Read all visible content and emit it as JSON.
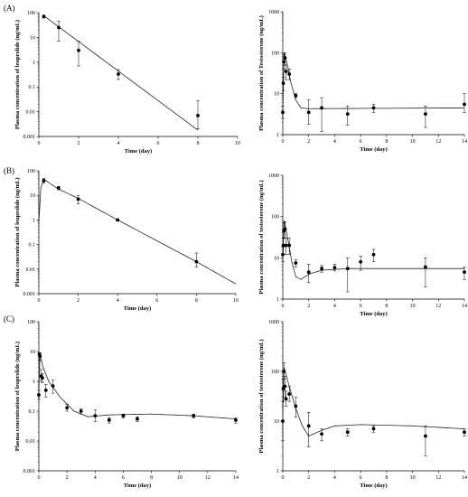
{
  "panels": [
    {
      "label": "(A)"
    },
    {
      "label": "(B)"
    },
    {
      "label": "(C)"
    }
  ],
  "chart_data": [
    {
      "id": "A-leuprolide",
      "type": "scatter",
      "panel": "(A)",
      "title": "",
      "xlabel": "Time (day)",
      "ylabel": "Plasma concentration of leuprolide (ng/mL)",
      "xlim": [
        0,
        10
      ],
      "ylim": [
        0.001,
        100
      ],
      "yscale": "log",
      "xticks": [
        0,
        2,
        4,
        6,
        8,
        10
      ],
      "yticks": [
        0.001,
        0.01,
        0.1,
        1,
        10,
        100
      ],
      "ytick_labels": [
        "0.001",
        "0.01",
        "0.1",
        "1",
        "10",
        "100"
      ],
      "points": [
        {
          "x": 0.25,
          "y": 70,
          "lo": 60,
          "hi": 80
        },
        {
          "x": 1,
          "y": 25,
          "lo": 7,
          "hi": 45
        },
        {
          "x": 2,
          "y": 3,
          "lo": 0.7,
          "hi": 7
        },
        {
          "x": 4,
          "y": 0.33,
          "lo": 0.2,
          "hi": 0.5
        },
        {
          "x": 8,
          "y": 0.007,
          "lo": 0.002,
          "hi": 0.028
        }
      ],
      "fit": [
        [
          0.25,
          75
        ],
        [
          8,
          0.0018
        ]
      ]
    },
    {
      "id": "A-testosterone",
      "type": "scatter",
      "panel": "(A)",
      "title": "",
      "xlabel": "Time (day)",
      "ylabel": "Plasma concentration of Testosterone (ng/mL)",
      "xlim": [
        0,
        14
      ],
      "ylim": [
        1,
        1000
      ],
      "yscale": "log",
      "xticks": [
        0,
        2,
        4,
        6,
        8,
        10,
        12,
        14
      ],
      "yticks": [
        1,
        10,
        100,
        1000
      ],
      "ytick_labels": [
        "1",
        "10",
        "100",
        "1000"
      ],
      "points": [
        {
          "x": 0,
          "y": 3.5,
          "lo": 2.5,
          "hi": 5
        },
        {
          "x": 0.04,
          "y": 18,
          "lo": 12,
          "hi": 25
        },
        {
          "x": 0.08,
          "y": 60,
          "lo": 40,
          "hi": 90
        },
        {
          "x": 0.17,
          "y": 75,
          "lo": 50,
          "hi": 100
        },
        {
          "x": 0.25,
          "y": 35,
          "lo": 22,
          "hi": 50
        },
        {
          "x": 0.5,
          "y": 30,
          "lo": 22,
          "hi": 40
        },
        {
          "x": 1,
          "y": 9,
          "lo": 8,
          "hi": 10
        },
        {
          "x": 2,
          "y": 3.5,
          "lo": 1.8,
          "hi": 7
        },
        {
          "x": 3,
          "y": 4.5,
          "lo": 1.2,
          "hi": 8
        },
        {
          "x": 5,
          "y": 3.2,
          "lo": 1.7,
          "hi": 5
        },
        {
          "x": 7,
          "y": 4.5,
          "lo": 3.5,
          "hi": 5.5
        },
        {
          "x": 11,
          "y": 3.2,
          "lo": 1.5,
          "hi": 5
        },
        {
          "x": 14,
          "y": 5.5,
          "lo": 3.5,
          "hi": 10
        }
      ],
      "fit": [
        [
          0,
          3.5
        ],
        [
          0.1,
          100
        ],
        [
          0.3,
          60
        ],
        [
          0.6,
          20
        ],
        [
          1,
          7
        ],
        [
          1.4,
          4.5
        ],
        [
          2,
          4.3
        ],
        [
          14,
          4.5
        ]
      ]
    },
    {
      "id": "B-leuprolide",
      "type": "scatter",
      "panel": "(B)",
      "title": "",
      "xlabel": "Time (day)",
      "ylabel": "Plasma concentration of leuprolide (ng/mL)",
      "xlim": [
        0,
        10
      ],
      "ylim": [
        0.001,
        100
      ],
      "yscale": "log",
      "xticks": [
        0,
        2,
        4,
        6,
        8,
        10
      ],
      "yticks": [
        0.001,
        0.01,
        0.1,
        1,
        10,
        100
      ],
      "ytick_labels": [
        "0.001",
        "0.01",
        "0.1",
        "1",
        "10",
        "100"
      ],
      "points": [
        {
          "x": 0.25,
          "y": 40,
          "lo": 32,
          "hi": 48
        },
        {
          "x": 1,
          "y": 20,
          "lo": 17,
          "hi": 23
        },
        {
          "x": 2,
          "y": 7,
          "lo": 4.5,
          "hi": 10
        },
        {
          "x": 4,
          "y": 1,
          "lo": 0.9,
          "hi": 1.1
        },
        {
          "x": 8,
          "y": 0.02,
          "lo": 0.012,
          "hi": 0.045
        }
      ],
      "fit": [
        [
          0,
          0.8
        ],
        [
          0.1,
          20
        ],
        [
          0.25,
          45
        ],
        [
          1,
          18
        ],
        [
          2,
          7.5
        ],
        [
          4,
          1
        ],
        [
          8,
          0.02
        ],
        [
          10,
          0.0025
        ]
      ]
    },
    {
      "id": "B-testosterone",
      "type": "scatter",
      "panel": "(B)",
      "title": "",
      "xlabel": "Time (day)",
      "ylabel": "Plasma concentration of testosterone (ng/mL)",
      "xlim": [
        0,
        14
      ],
      "ylim": [
        1,
        1000
      ],
      "yscale": "log",
      "xticks": [
        0,
        2,
        4,
        6,
        8,
        10,
        12,
        14
      ],
      "yticks": [
        1,
        10,
        100,
        1000
      ],
      "ytick_labels": [
        "1",
        "10",
        "100",
        "1000"
      ],
      "points": [
        {
          "x": 0,
          "y": 12,
          "lo": 8,
          "hi": 18
        },
        {
          "x": 0.04,
          "y": 20,
          "lo": 12,
          "hi": 30
        },
        {
          "x": 0.08,
          "y": 45,
          "lo": 30,
          "hi": 70
        },
        {
          "x": 0.17,
          "y": 50,
          "lo": 30,
          "hi": 75
        },
        {
          "x": 0.25,
          "y": 20,
          "lo": 12,
          "hi": 30
        },
        {
          "x": 0.5,
          "y": 20,
          "lo": 12,
          "hi": 30
        },
        {
          "x": 1,
          "y": 7.5,
          "lo": 6,
          "hi": 9
        },
        {
          "x": 2,
          "y": 4.5,
          "lo": 2.5,
          "hi": 7
        },
        {
          "x": 3,
          "y": 5.5,
          "lo": 4.5,
          "hi": 6.5
        },
        {
          "x": 4,
          "y": 5.8,
          "lo": 4.8,
          "hi": 7
        },
        {
          "x": 5,
          "y": 5.5,
          "lo": 1.5,
          "hi": 10
        },
        {
          "x": 6,
          "y": 8,
          "lo": 5,
          "hi": 11
        },
        {
          "x": 7,
          "y": 12,
          "lo": 8,
          "hi": 16
        },
        {
          "x": 11,
          "y": 6,
          "lo": 2,
          "hi": 10
        },
        {
          "x": 14,
          "y": 4.5,
          "lo": 3,
          "hi": 6
        }
      ],
      "fit": [
        [
          0,
          10
        ],
        [
          0.1,
          80
        ],
        [
          0.3,
          40
        ],
        [
          0.7,
          8
        ],
        [
          1,
          3.5
        ],
        [
          1.4,
          3
        ],
        [
          2,
          4
        ],
        [
          3,
          5
        ],
        [
          5,
          5.5
        ],
        [
          14,
          5.5
        ]
      ]
    },
    {
      "id": "C-leuprolide",
      "type": "scatter",
      "panel": "(C)",
      "title": "",
      "xlabel": "Time (day)",
      "ylabel": "Plasma concentration of leuprolide (ng/mL)",
      "xlim": [
        0,
        14
      ],
      "ylim": [
        0.001,
        100
      ],
      "yscale": "log",
      "xticks": [
        0,
        2,
        4,
        6,
        8,
        10,
        12,
        14
      ],
      "yticks": [
        0.001,
        0.01,
        0.1,
        1,
        10,
        100
      ],
      "ytick_labels": [
        "0.001",
        "0.01",
        "0.1",
        "1",
        "10",
        "100"
      ],
      "points": [
        {
          "x": 0,
          "y": 0.35,
          "lo": 0.25,
          "hi": 0.5
        },
        {
          "x": 0.04,
          "y": 8,
          "lo": 5,
          "hi": 9
        },
        {
          "x": 0.08,
          "y": 7,
          "lo": 5,
          "hi": 9
        },
        {
          "x": 0.17,
          "y": 1.5,
          "lo": 1,
          "hi": 2.5
        },
        {
          "x": 0.25,
          "y": 1.3,
          "lo": 0.9,
          "hi": 1.8
        },
        {
          "x": 0.5,
          "y": 0.5,
          "lo": 0.3,
          "hi": 0.8
        },
        {
          "x": 1,
          "y": 0.7,
          "lo": 0.4,
          "hi": 1.1
        },
        {
          "x": 2,
          "y": 0.13,
          "lo": 0.1,
          "hi": 0.17
        },
        {
          "x": 3,
          "y": 0.1,
          "lo": 0.08,
          "hi": 0.12
        },
        {
          "x": 4,
          "y": 0.07,
          "lo": 0.045,
          "hi": 0.11
        },
        {
          "x": 5,
          "y": 0.05,
          "lo": 0.04,
          "hi": 0.06
        },
        {
          "x": 6,
          "y": 0.07,
          "lo": 0.06,
          "hi": 0.08
        },
        {
          "x": 7,
          "y": 0.055,
          "lo": 0.045,
          "hi": 0.065
        },
        {
          "x": 11,
          "y": 0.07,
          "lo": 0.06,
          "hi": 0.08
        },
        {
          "x": 14,
          "y": 0.05,
          "lo": 0.04,
          "hi": 0.06
        }
      ],
      "fit": [
        [
          0,
          0.5
        ],
        [
          0.08,
          8
        ],
        [
          0.3,
          3
        ],
        [
          0.7,
          1
        ],
        [
          1.5,
          0.3
        ],
        [
          2.5,
          0.1
        ],
        [
          3.5,
          0.065
        ],
        [
          5,
          0.075
        ],
        [
          8,
          0.08
        ],
        [
          11,
          0.07
        ],
        [
          14,
          0.055
        ]
      ]
    },
    {
      "id": "C-testosterone",
      "type": "scatter",
      "panel": "(C)",
      "title": "",
      "xlabel": "Time (day)",
      "ylabel": "Plasma concentration of testosterone (ng/mL)",
      "xlim": [
        0,
        14
      ],
      "ylim": [
        1,
        1000
      ],
      "yscale": "log",
      "xticks": [
        0,
        2,
        4,
        6,
        8,
        10,
        12,
        14
      ],
      "yticks": [
        1,
        10,
        100,
        1000
      ],
      "ytick_labels": [
        "1",
        "10",
        "100",
        "1000"
      ],
      "points": [
        {
          "x": 0,
          "y": 10,
          "lo": 4,
          "hi": 25
        },
        {
          "x": 0.04,
          "y": 45,
          "lo": 25,
          "hi": 70
        },
        {
          "x": 0.08,
          "y": 100,
          "lo": 70,
          "hi": 150
        },
        {
          "x": 0.17,
          "y": 50,
          "lo": 30,
          "hi": 80
        },
        {
          "x": 0.25,
          "y": 28,
          "lo": 20,
          "hi": 40
        },
        {
          "x": 0.5,
          "y": 35,
          "lo": 25,
          "hi": 50
        },
        {
          "x": 1,
          "y": 20,
          "lo": 12,
          "hi": 30
        },
        {
          "x": 2,
          "y": 8,
          "lo": 3,
          "hi": 15
        },
        {
          "x": 3,
          "y": 5.5,
          "lo": 4,
          "hi": 7
        },
        {
          "x": 5,
          "y": 6,
          "lo": 5,
          "hi": 7
        },
        {
          "x": 7,
          "y": 7,
          "lo": 6,
          "hi": 8
        },
        {
          "x": 11,
          "y": 5,
          "lo": 2,
          "hi": 8
        },
        {
          "x": 14,
          "y": 6,
          "lo": 5,
          "hi": 7
        }
      ],
      "fit": [
        [
          0,
          15
        ],
        [
          0.1,
          120
        ],
        [
          0.5,
          50
        ],
        [
          1,
          18
        ],
        [
          1.5,
          8
        ],
        [
          2,
          5
        ],
        [
          3,
          6.5
        ],
        [
          4,
          8
        ],
        [
          6,
          8.5
        ],
        [
          10,
          8
        ],
        [
          14,
          7
        ]
      ]
    }
  ]
}
